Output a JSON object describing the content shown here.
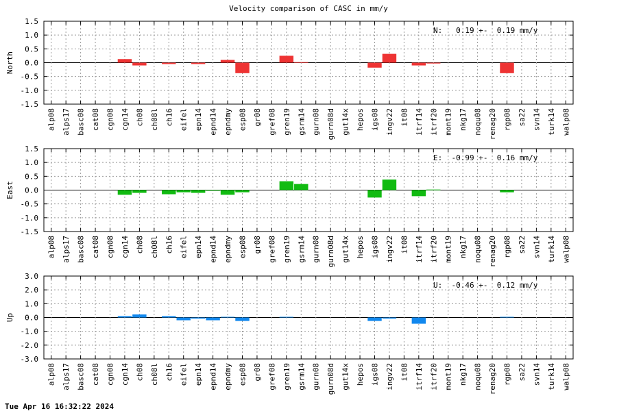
{
  "title": "Velocity comparison of CASC in mm/y",
  "timestamp": "Tue Apr 16 16:32:22 2024",
  "chart_data": [
    {
      "type": "bar",
      "ylabel": "North",
      "annotation": "N:   0.19 +-  0.19 mm/y",
      "color": "#ee3333",
      "ylim": [
        -1.5,
        1.5
      ],
      "yticks": [
        "1.5",
        "1.0",
        "0.5",
        "0.0",
        "-0.5",
        "-1.0",
        "-1.5"
      ],
      "categories": [
        "alp08",
        "alps17",
        "basc08",
        "cat08",
        "cgn08",
        "cgn14",
        "ch08",
        "ch08l",
        "ch16",
        "eifel",
        "epn14",
        "epnd14",
        "epndmy",
        "esp08",
        "gr08",
        "gref08",
        "gren19",
        "gsrm14",
        "gurn08",
        "gurn08d",
        "gut14x",
        "hepos",
        "igs08",
        "ingv22",
        "it08",
        "itrf14",
        "itrf20",
        "mont19",
        "nkg17",
        "noqu08",
        "renag20",
        "rgp08",
        "sa22",
        "svn14",
        "turk14",
        "walp08"
      ],
      "values": [
        0,
        0,
        0,
        0,
        0,
        0.13,
        -0.1,
        0,
        -0.05,
        0,
        -0.05,
        0,
        0.1,
        -0.38,
        0,
        0,
        0.25,
        0.02,
        0,
        0,
        0,
        0,
        -0.18,
        0.32,
        0,
        -0.1,
        -0.03,
        0,
        0,
        0,
        0,
        -0.38,
        0,
        0,
        0,
        0
      ]
    },
    {
      "type": "bar",
      "ylabel": "East",
      "annotation": "E:  -0.99 +-  0.16 mm/y",
      "color": "#11bb11",
      "ylim": [
        -1.5,
        1.5
      ],
      "yticks": [
        "1.5",
        "1.0",
        "0.5",
        "0.0",
        "-0.5",
        "-1.0",
        "-1.5"
      ],
      "categories": [
        "alp08",
        "alps17",
        "basc08",
        "cat08",
        "cgn08",
        "cgn14",
        "ch08",
        "ch08l",
        "ch16",
        "eifel",
        "epn14",
        "epnd14",
        "epndmy",
        "esp08",
        "gr08",
        "gref08",
        "gren19",
        "gsrm14",
        "gurn08",
        "gurn08d",
        "gut14x",
        "hepos",
        "igs08",
        "ingv22",
        "it08",
        "itrf14",
        "itrf20",
        "mont19",
        "nkg17",
        "noqu08",
        "renag20",
        "rgp08",
        "sa22",
        "svn14",
        "turk14",
        "walp08"
      ],
      "values": [
        0,
        0,
        0,
        0,
        0,
        -0.17,
        -0.1,
        0,
        -0.15,
        -0.08,
        -0.1,
        -0.02,
        -0.17,
        -0.08,
        0,
        0,
        0.32,
        0.22,
        0,
        0,
        0,
        0,
        -0.27,
        0.38,
        0,
        -0.22,
        0.02,
        0,
        0,
        0,
        0,
        -0.08,
        0,
        0,
        0,
        0
      ]
    },
    {
      "type": "bar",
      "ylabel": "Up",
      "annotation": "U:  -0.46 +-  0.12 mm/y",
      "color": "#1188ee",
      "ylim": [
        -3.0,
        3.0
      ],
      "yticks": [
        "3.0",
        "2.0",
        "1.0",
        "0.0",
        "-1.0",
        "-2.0",
        "-3.0"
      ],
      "categories": [
        "alp08",
        "alps17",
        "basc08",
        "cat08",
        "cgn08",
        "cgn14",
        "ch08",
        "ch08l",
        "ch16",
        "eifel",
        "epn14",
        "epnd14",
        "epndmy",
        "esp08",
        "gr08",
        "gref08",
        "gren19",
        "gsrm14",
        "gurn08",
        "gurn08d",
        "gut14x",
        "hepos",
        "igs08",
        "ingv22",
        "it08",
        "itrf14",
        "itrf20",
        "mont19",
        "nkg17",
        "noqu08",
        "renag20",
        "rgp08",
        "sa22",
        "svn14",
        "turk14",
        "walp08"
      ],
      "values": [
        0,
        0,
        0,
        0,
        0,
        0.1,
        0.22,
        0,
        0.1,
        -0.2,
        -0.08,
        -0.2,
        0.05,
        -0.25,
        0,
        0,
        0.05,
        0,
        0,
        0,
        0,
        0,
        -0.25,
        -0.08,
        0,
        -0.45,
        0,
        0,
        0,
        0,
        0,
        0.05,
        0,
        0,
        0,
        0
      ]
    }
  ]
}
